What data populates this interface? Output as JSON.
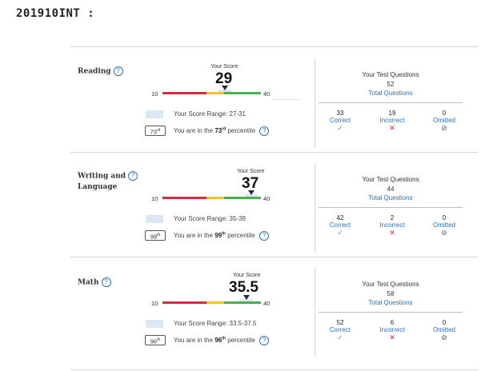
{
  "heading": "201910INT  :",
  "labels": {
    "your_score": "Your Score",
    "your_test_questions": "Your Test Questions",
    "total_questions": "Total Questions",
    "correct": "Correct",
    "incorrect": "Incorrect",
    "omitted": "Omitted",
    "range_prefix": "Your Score Range:",
    "pct_prefix": "You are in the",
    "pct_suffix": "percentile",
    "help_symbol": "?"
  },
  "icons": {
    "help": "help-circle-icon",
    "correct": "check-icon",
    "incorrect": "x-icon",
    "omitted": "omitted-icon"
  },
  "colors": {
    "low": "#d9293f",
    "mid": "#f2c12e",
    "high": "#4caf50",
    "link": "#2f6fb8"
  },
  "scale": {
    "min": "10",
    "max": "40"
  },
  "sections": [
    {
      "title": "Reading",
      "score": "29",
      "score_value": 29,
      "range": "27-31",
      "range_low": 27,
      "range_high": 31,
      "percentile": "73",
      "percentile_suffix": "rd",
      "total_questions": "52",
      "correct": "33",
      "incorrect": "19",
      "omitted": "0"
    },
    {
      "title": "Writing and Language",
      "title_line1": "Writing and",
      "title_line2": "Language",
      "score": "37",
      "score_value": 37,
      "range": "35-39",
      "range_low": 35,
      "range_high": 39,
      "percentile": "99",
      "percentile_suffix": "th",
      "total_questions": "44",
      "correct": "42",
      "incorrect": "2",
      "omitted": "0"
    },
    {
      "title": "Math",
      "score": "35.5",
      "score_value": 35.5,
      "range": "33.5-37.5",
      "range_low": 33.5,
      "range_high": 37.5,
      "percentile": "96",
      "percentile_suffix": "th",
      "total_questions": "58",
      "correct": "52",
      "incorrect": "6",
      "omitted": "0"
    }
  ]
}
